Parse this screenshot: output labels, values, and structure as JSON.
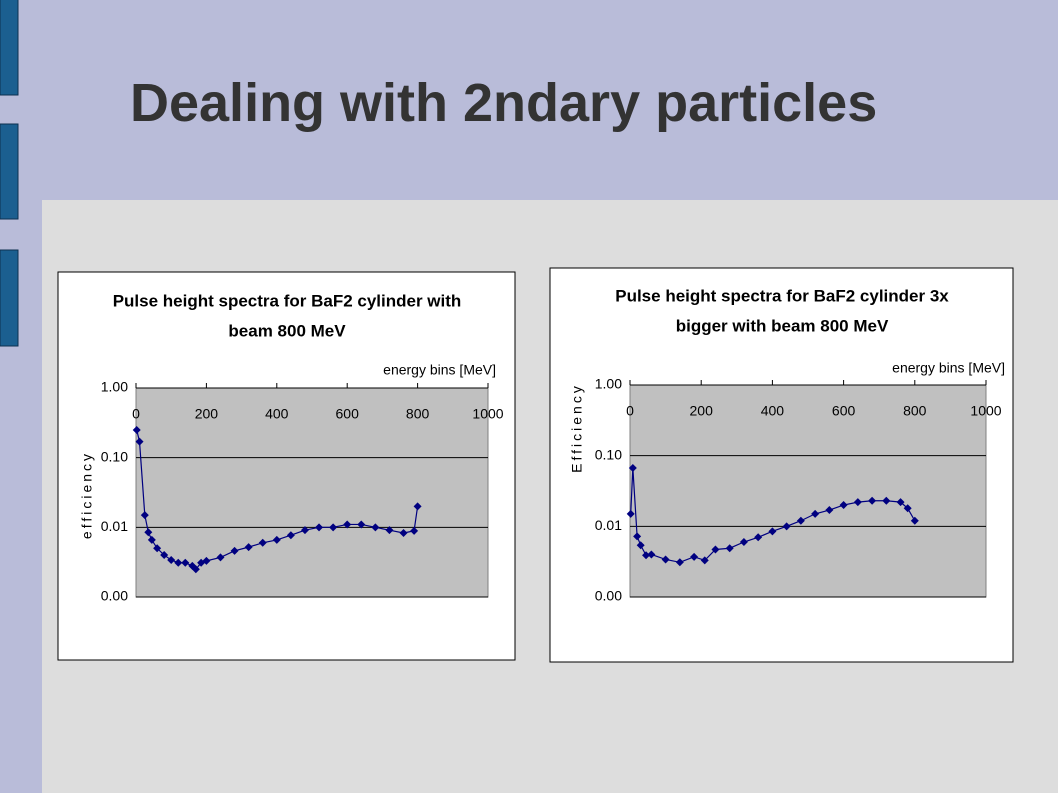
{
  "title": "Dealing with 2ndary particles",
  "chart_data": [
    {
      "type": "line",
      "title": [
        "Pulse height spectra for BaF2 cylinder with",
        "beam 800 MeV"
      ],
      "x_label": "energy bins [MeV]",
      "y_label": "efficiency",
      "x": [
        2,
        10,
        25,
        35,
        45,
        60,
        80,
        100,
        120,
        140,
        160,
        170,
        185,
        200,
        240,
        280,
        320,
        360,
        400,
        440,
        480,
        520,
        560,
        600,
        640,
        680,
        720,
        760,
        790,
        800
      ],
      "values": [
        0.25,
        0.17,
        0.015,
        0.0085,
        0.0066,
        0.005,
        0.004,
        0.0034,
        0.0031,
        0.0031,
        0.0028,
        0.0025,
        0.0031,
        0.0033,
        0.0037,
        0.0046,
        0.0052,
        0.006,
        0.0066,
        0.0077,
        0.0091,
        0.01,
        0.01,
        0.011,
        0.011,
        0.01,
        0.0091,
        0.0083,
        0.0089,
        0.02
      ],
      "color": "#000080",
      "xlim": [
        0,
        1000
      ],
      "xticks": [
        0,
        200,
        400,
        600,
        800,
        1000
      ],
      "ylim": [
        0.001,
        1
      ],
      "yticks": [
        {
          "value": 1,
          "label": "1.00"
        },
        {
          "value": 0.1,
          "label": "0.10"
        },
        {
          "value": 0.01,
          "label": "0.01"
        },
        {
          "value": 0.001,
          "label": "0.00"
        }
      ],
      "log_y": true,
      "grid": true
    },
    {
      "type": "line",
      "title": [
        "Pulse height spectra for BaF2 cylinder 3x",
        "bigger with beam 800 MeV"
      ],
      "x_label": "energy bins [MeV]",
      "y_label": "Efficiency",
      "x": [
        2,
        8,
        20,
        30,
        45,
        60,
        100,
        140,
        180,
        210,
        240,
        280,
        320,
        360,
        400,
        440,
        480,
        520,
        560,
        600,
        640,
        680,
        720,
        760,
        780,
        800
      ],
      "values": [
        0.015,
        0.067,
        0.0072,
        0.0054,
        0.0039,
        0.004,
        0.0034,
        0.0031,
        0.0037,
        0.0033,
        0.0047,
        0.0049,
        0.006,
        0.007,
        0.0085,
        0.01,
        0.012,
        0.015,
        0.017,
        0.02,
        0.022,
        0.023,
        0.023,
        0.022,
        0.018,
        0.012
      ],
      "color": "#000080",
      "xlim": [
        0,
        1000
      ],
      "xticks": [
        0,
        200,
        400,
        600,
        800,
        1000
      ],
      "ylim": [
        0.001,
        1
      ],
      "yticks": [
        {
          "value": 1,
          "label": "1.00"
        },
        {
          "value": 0.1,
          "label": "0.10"
        },
        {
          "value": 0.01,
          "label": "0.01"
        },
        {
          "value": 0.001,
          "label": "0.00"
        }
      ],
      "log_y": true,
      "grid": true
    }
  ]
}
